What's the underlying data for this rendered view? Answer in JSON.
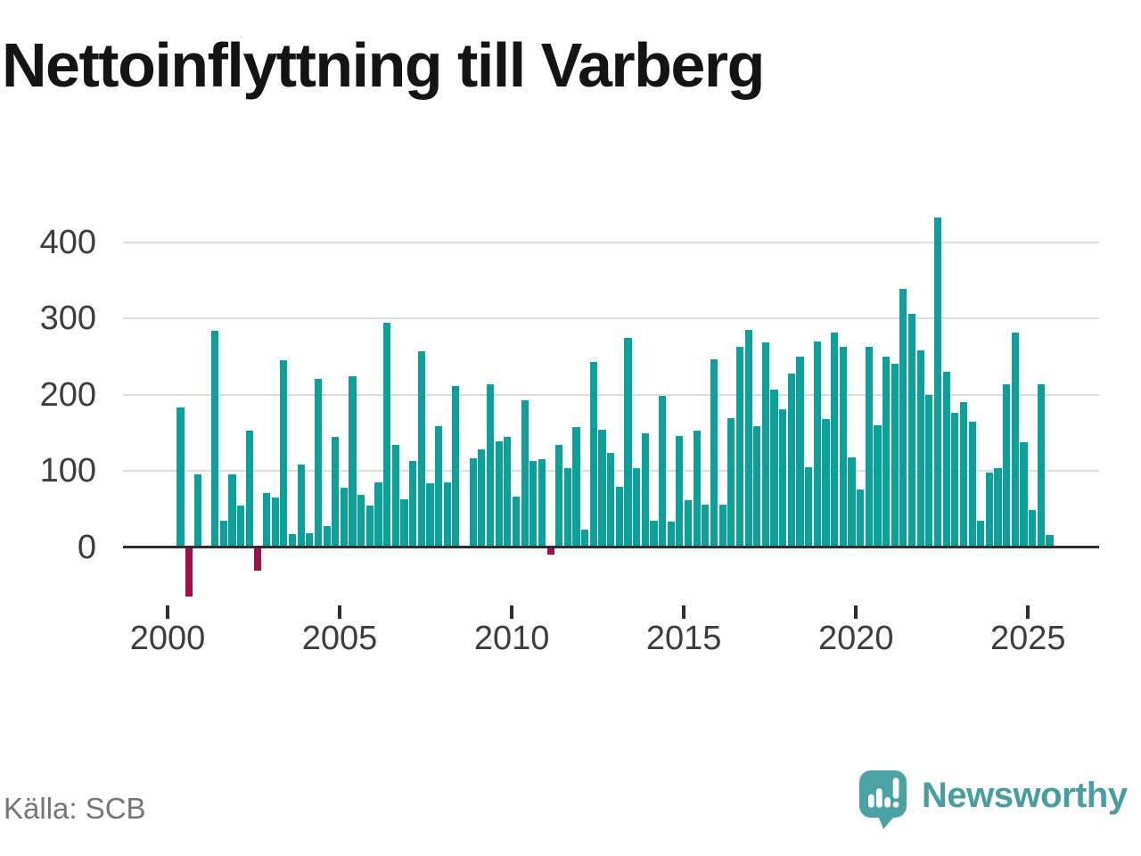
{
  "title": "Nettoinflyttning till Varberg",
  "source": "Källa: SCB",
  "branding": {
    "name": "Newsworthy",
    "icon": "newsworthy-speech-bubble-bar-chart-icon"
  },
  "colors": {
    "bar_positive": "#0ba19a",
    "bar_negative": "#a20d4c",
    "grid": "#dcdcdc",
    "axis_line": "#2e2e2e",
    "tick_mark": "#2e2e2e",
    "tick_label": "#3d3d3d",
    "title_text": "#141414",
    "source_text": "#757575",
    "brand_teal": "#489e9e",
    "brand_icon_teal": "#4aa3a2"
  },
  "chart_data": {
    "type": "bar",
    "title": "Nettoinflyttning till Varberg",
    "frequency": "quarterly",
    "start_period": "2000-Q1",
    "end_period": "2025-Q2",
    "values": [
      183,
      -65,
      95,
      0,
      284,
      35,
      95,
      54,
      153,
      -31,
      71,
      65,
      245,
      17,
      108,
      18,
      221,
      28,
      145,
      78,
      224,
      68,
      55,
      85,
      294,
      134,
      63,
      113,
      257,
      84,
      159,
      85,
      211,
      0,
      117,
      128,
      214,
      139,
      145,
      66,
      193,
      113,
      115,
      -10,
      134,
      104,
      157,
      23,
      243,
      154,
      124,
      79,
      275,
      103,
      149,
      35,
      198,
      33,
      146,
      61,
      153,
      56,
      246,
      56,
      169,
      263,
      285,
      158,
      269,
      207,
      181,
      228,
      250,
      105,
      270,
      168,
      281,
      263,
      118,
      75,
      263,
      160,
      250,
      240,
      339,
      306,
      258,
      200,
      433,
      230,
      176,
      190,
      165,
      35,
      98,
      104,
      213,
      281,
      137,
      48,
      213,
      16
    ],
    "x_ticks": [
      2000,
      2005,
      2010,
      2015,
      2020,
      2025
    ],
    "y_ticks": [
      0,
      100,
      200,
      300,
      400
    ],
    "ylim": [
      -80,
      450
    ],
    "grid": "horizontal-only",
    "legend": "none",
    "note_gaps": "2000-Q4 and 2008-Q2 have value 0 (no bar drawn)"
  }
}
